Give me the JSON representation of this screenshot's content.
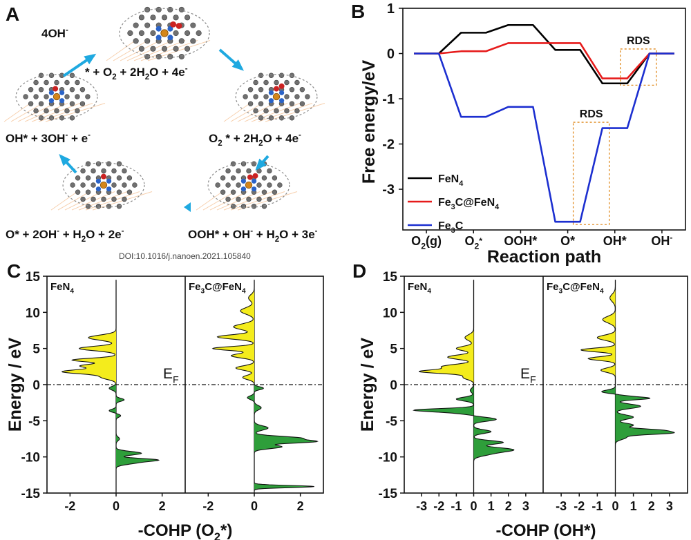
{
  "doi": "DOI:10.1016/j.nanoen.2021.105840",
  "panel_labels": {
    "a": "A",
    "b": "B",
    "c": "C",
    "d": "D"
  },
  "scheme": {
    "states": [
      "* + O<sub>2</sub> + 2H<sub>2</sub>O + 4e<sup>-</sup>",
      "O<sub>2</sub> * + 2H<sub>2</sub>O + 4e<sup>-</sup>",
      "OOH* + OH<sup>-</sup> + H<sub>2</sub>O + 3e<sup>-</sup>",
      "O* + 2OH<sup>-</sup> + H<sub>2</sub>O + 2e<sup>-</sup>",
      "OH* + 3OH<sup>-</sup> + e<sup>-</sup>"
    ],
    "product": "4OH<sup>-</sup>",
    "colors": {
      "arrow": "#1fa9e0",
      "carbon": "#707070",
      "nitrogen": "#2a63c8",
      "iron": "#d4861a",
      "oxygen": "#cc2222",
      "substrate": "#f2b27a"
    }
  },
  "chart_data": [
    {
      "id": "B",
      "type": "line",
      "title": "",
      "xlabel": "Reaction path",
      "ylabel": "Free energy/eV",
      "categories": [
        "O<sub>2</sub>(g)",
        "O<sub>2</sub><sup>*</sup>",
        "OOH*",
        "O*",
        "OH*",
        "OH<sup>-</sup>"
      ],
      "ylim": [
        -3.9,
        1
      ],
      "yticks": [
        1,
        0,
        -1,
        -2,
        -3
      ],
      "series": [
        {
          "name": "FeN<sub>4</sub>",
          "color": "#000000",
          "values": [
            0,
            0.46,
            0.63,
            0.08,
            -0.66,
            0
          ]
        },
        {
          "name": "Fe<sub>3</sub>C@FeN<sub>4</sub>",
          "color": "#e61b1b",
          "values": [
            0,
            0.05,
            0.23,
            0.23,
            -0.55,
            0
          ]
        },
        {
          "name": "Fe<sub>3</sub>C",
          "color": "#1c2fd0",
          "values": [
            0,
            -1.4,
            -1.18,
            -3.72,
            -1.65,
            0
          ]
        }
      ],
      "annotations": [
        {
          "text": "RDS",
          "step": [
            4,
            5
          ],
          "range": [
            0.1,
            -0.7
          ]
        },
        {
          "text": "RDS",
          "step": [
            3,
            4
          ],
          "range": [
            -1.52,
            -3.78
          ]
        }
      ],
      "legend": "bottom-left"
    },
    {
      "id": "C",
      "type": "area",
      "xlabel": "-COHP (O<sub>2</sub>*)",
      "ylabel": "Energy / eV",
      "ylim": [
        -15,
        15
      ],
      "yticks": [
        15,
        10,
        5,
        0,
        -5,
        -10,
        -15
      ],
      "fermi_label": "E<sub>F</sub>",
      "subplots": [
        {
          "name": "FeN<sub>4</sub>",
          "xlim": [
            -3,
            3
          ],
          "xticks": [
            -2,
            0,
            2
          ],
          "peaks": [
            [
              -1.2,
              6.5,
              0.35
            ],
            [
              -1.6,
              5.0,
              0.3
            ],
            [
              -1.9,
              3.4,
              0.25
            ],
            [
              -2.3,
              1.8,
              0.3
            ],
            [
              -1.5,
              2.6,
              0.25
            ],
            [
              -0.6,
              1.0,
              0.3
            ],
            [
              -0.3,
              -0.5,
              0.25
            ],
            [
              0.35,
              -2.1,
              0.2
            ],
            [
              -0.3,
              -3.6,
              0.2
            ],
            [
              0.2,
              -4.3,
              0.2
            ],
            [
              0.15,
              -7.5,
              0.25
            ],
            [
              1.1,
              -9.5,
              0.25
            ],
            [
              1.6,
              -10.4,
              0.2
            ],
            [
              0.8,
              -10.8,
              0.25
            ],
            [
              -0.05,
              1.6,
              0.15
            ]
          ]
        },
        {
          "name": "Fe<sub>3</sub>C@FeN<sub>4</sub>",
          "xlim": [
            -3,
            3
          ],
          "xticks": [
            -2,
            0,
            2
          ],
          "peaks": [
            [
              -0.25,
              12.0,
              0.45
            ],
            [
              -0.6,
              10.2,
              0.45
            ],
            [
              -0.9,
              8.0,
              0.4
            ],
            [
              -1.6,
              6.6,
              0.3
            ],
            [
              -1.8,
              5.0,
              0.25
            ],
            [
              -1.0,
              4.0,
              0.3
            ],
            [
              -0.8,
              2.3,
              0.3
            ],
            [
              -0.5,
              1.0,
              0.3
            ],
            [
              0.4,
              -0.5,
              0.2
            ],
            [
              -0.3,
              -1.8,
              0.25
            ],
            [
              0.3,
              -3.2,
              0.3
            ],
            [
              0.6,
              -6.0,
              0.3
            ],
            [
              2.0,
              -7.4,
              0.25
            ],
            [
              2.4,
              -7.9,
              0.2
            ],
            [
              1.2,
              -8.6,
              0.25
            ],
            [
              2.6,
              -14.1,
              0.15
            ]
          ]
        }
      ]
    },
    {
      "id": "D",
      "type": "area",
      "xlabel": "-COHP (OH*)",
      "ylabel": "Energy / eV",
      "ylim": [
        -15,
        15
      ],
      "yticks": [
        15,
        10,
        5,
        0,
        -5,
        -10,
        -15
      ],
      "fermi_label": "E<sub>F</sub>",
      "subplots": [
        {
          "name": "FeN<sub>4</sub>",
          "xlim": [
            -4,
            4
          ],
          "xticks": [
            -3,
            -2,
            -1,
            0,
            1,
            2,
            3
          ],
          "peaks": [
            [
              -0.5,
              6.5,
              0.4
            ],
            [
              -1.0,
              5.0,
              0.3
            ],
            [
              -1.5,
              3.8,
              0.3
            ],
            [
              -3.0,
              1.8,
              0.25
            ],
            [
              -1.8,
              2.5,
              0.3
            ],
            [
              -0.6,
              1.0,
              0.3
            ],
            [
              -0.2,
              -0.8,
              0.3
            ],
            [
              -1.0,
              -2.0,
              0.25
            ],
            [
              -2.8,
              -3.5,
              0.2
            ],
            [
              -1.2,
              -3.8,
              0.25
            ],
            [
              1.3,
              -4.8,
              0.25
            ],
            [
              1.0,
              -6.5,
              0.25
            ],
            [
              1.7,
              -8.0,
              0.25
            ],
            [
              2.2,
              -9.0,
              0.3
            ],
            [
              0.8,
              -9.6,
              0.3
            ]
          ]
        },
        {
          "name": "Fe<sub>3</sub>C@FeN<sub>4</sub>",
          "xlim": [
            -4,
            4
          ],
          "xticks": [
            -3,
            -2,
            -1,
            0,
            1,
            2,
            3
          ],
          "peaks": [
            [
              -0.3,
              12.0,
              0.5
            ],
            [
              -0.7,
              9.0,
              0.45
            ],
            [
              -1.0,
              6.5,
              0.35
            ],
            [
              -1.9,
              4.8,
              0.25
            ],
            [
              -1.5,
              3.6,
              0.25
            ],
            [
              -0.8,
              2.0,
              0.3
            ],
            [
              -0.8,
              -1.0,
              0.25
            ],
            [
              0.4,
              -1.5,
              0.25
            ],
            [
              1.8,
              -1.9,
              0.2
            ],
            [
              1.4,
              -3.0,
              0.3
            ],
            [
              1.0,
              -4.5,
              0.3
            ],
            [
              1.0,
              -5.6,
              0.25
            ],
            [
              2.3,
              -6.3,
              0.2
            ],
            [
              2.8,
              -6.7,
              0.2
            ],
            [
              0.6,
              -7.3,
              0.3
            ]
          ]
        }
      ]
    }
  ]
}
